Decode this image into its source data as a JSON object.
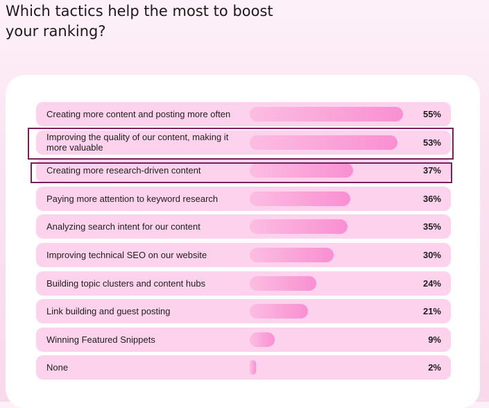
{
  "title": "Which tactics help the most to boost your ranking?",
  "colors": {
    "row_background": "#fdd2ec",
    "bar_start": "#fcbde2",
    "bar_end": "#f98fd2",
    "highlight_border": "#7a1f5c"
  },
  "chart_data": {
    "type": "bar",
    "orientation": "horizontal",
    "title": "Which tactics help the most to boost your ranking?",
    "xlabel": "",
    "ylabel": "",
    "xlim": [
      0,
      56
    ],
    "grid": false,
    "legend": "none",
    "categories": [
      "Creating more content and posting more often",
      "Improving the quality of our content, making it more valuable",
      "Creating more research-driven content",
      "Paying more attention to keyword research",
      "Analyzing search intent for our content",
      "Improving technical SEO on our website",
      "Building topic clusters and content hubs",
      "Link building and guest posting",
      "Winning Featured Snippets",
      "None"
    ],
    "values": [
      55,
      53,
      37,
      36,
      35,
      30,
      24,
      21,
      9,
      2
    ],
    "value_labels": [
      "55%",
      "53%",
      "37%",
      "36%",
      "35%",
      "30%",
      "24%",
      "21%",
      "9%",
      "2%"
    ],
    "highlighted": [
      "Improving the quality of our content, making it more valuable",
      "Creating more research-driven content"
    ]
  }
}
